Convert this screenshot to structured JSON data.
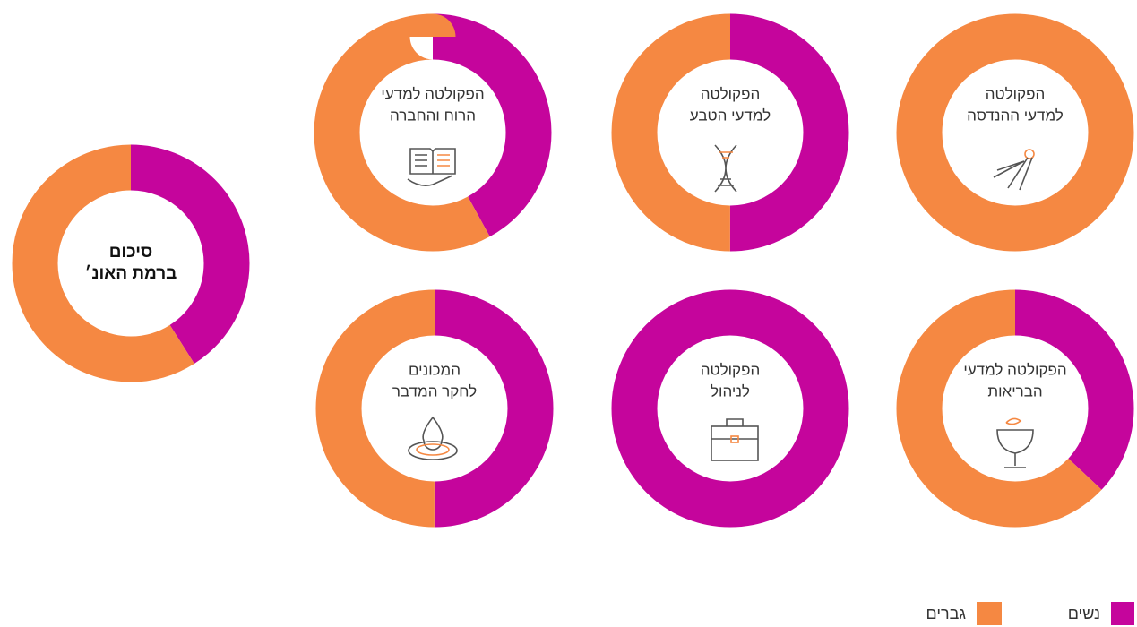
{
  "chart_data": [
    {
      "type": "pie",
      "title": [
        "סיכום",
        "ברמת האונ׳"
      ],
      "categories": [
        "נשים",
        "גברים"
      ],
      "values": [
        41,
        59
      ],
      "colors": [
        "#c5059c",
        "#f58842"
      ]
    },
    {
      "type": "pie",
      "title": [
        "הפקולטה למדעי",
        "הרוח והחברה"
      ],
      "categories": [
        "נשים",
        "גברים"
      ],
      "values": [
        42,
        58
      ],
      "colors": [
        "#c5059c",
        "#f58842"
      ]
    },
    {
      "type": "pie",
      "title": [
        "הפקולטה",
        "למדעי הטבע"
      ],
      "categories": [
        "נשים",
        "גברים"
      ],
      "values": [
        50,
        50
      ],
      "colors": [
        "#c5059c",
        "#f58842"
      ]
    },
    {
      "type": "pie",
      "title": [
        "הפקולטה",
        "למדעי ההנדסה"
      ],
      "categories": [
        "נשים",
        "גברים"
      ],
      "values": [
        0,
        100
      ],
      "colors": [
        "#c5059c",
        "#f58842"
      ]
    },
    {
      "type": "pie",
      "title": [
        "המכונים",
        "לחקר המדבר"
      ],
      "categories": [
        "נשים",
        "גברים"
      ],
      "values": [
        50,
        50
      ],
      "colors": [
        "#c5059c",
        "#f58842"
      ]
    },
    {
      "type": "pie",
      "title": [
        "הפקולטה",
        "לניהול"
      ],
      "categories": [
        "נשים",
        "גברים"
      ],
      "values": [
        100,
        0
      ],
      "colors": [
        "#c5059c",
        "#f58842"
      ]
    },
    {
      "type": "pie",
      "title": [
        "הפקולטה למדעי",
        "הבריאות"
      ],
      "categories": [
        "נשים",
        "גברים"
      ],
      "values": [
        37,
        63
      ],
      "colors": [
        "#c5059c",
        "#f58842"
      ]
    }
  ]
}
